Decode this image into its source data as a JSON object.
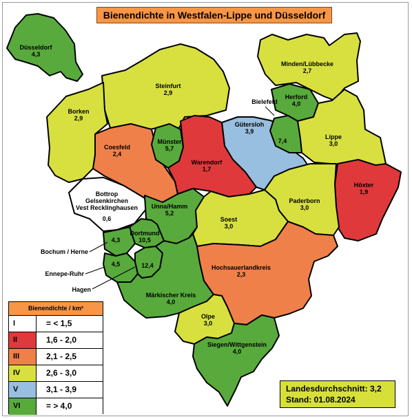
{
  "title": "Bienendichte in Westfalen-Lippe und Düsseldorf",
  "colors": {
    "I": "#ffffff",
    "II": "#e0393b",
    "III": "#f0804a",
    "IV": "#d8e040",
    "V": "#99bfe0",
    "VI": "#58aa3c"
  },
  "regions": [
    {
      "id": "duesseldorf",
      "name": "Düsseldorf",
      "value": "4,3",
      "class": "VI"
    },
    {
      "id": "minden",
      "name": "Minden/Lübbecke",
      "value": "2,7",
      "class": "IV"
    },
    {
      "id": "steinfurt",
      "name": "Steinfurt",
      "value": "2,9",
      "class": "IV"
    },
    {
      "id": "borken",
      "name": "Borken",
      "value": "2,9",
      "class": "IV"
    },
    {
      "id": "herford",
      "name": "Herford",
      "value": "4,0",
      "class": "VI"
    },
    {
      "id": "bielefeld",
      "name": "",
      "value": "7,4",
      "class": "VI"
    },
    {
      "id": "guetersloh",
      "name": "Gütersloh",
      "value": "3,9",
      "class": "V"
    },
    {
      "id": "lippe",
      "name": "Lippe",
      "value": "3,0",
      "class": "IV"
    },
    {
      "id": "coesfeld",
      "name": "Coesfeld",
      "value": "2,4",
      "class": "III"
    },
    {
      "id": "muenster",
      "name": "Münster",
      "value": "5,7",
      "class": "VI"
    },
    {
      "id": "warendorf",
      "name": "Warendorf",
      "value": "1,7",
      "class": "II"
    },
    {
      "id": "hoexter",
      "name": "Höxter",
      "value": "1,9",
      "class": "II"
    },
    {
      "id": "paderborn",
      "name": "Paderborn",
      "value": "3,0",
      "class": "IV"
    },
    {
      "id": "bottrop",
      "name": "Bottrop Gelsenkirchen Vest Recklinghausen",
      "value": "0,6",
      "class": "I"
    },
    {
      "id": "unna",
      "name": "Unna/Hamm",
      "value": "5,2",
      "class": "VI"
    },
    {
      "id": "soest",
      "name": "Soest",
      "value": "3,0",
      "class": "IV"
    },
    {
      "id": "dortmund",
      "name": "Dortmund",
      "value": "10,5",
      "class": "VI"
    },
    {
      "id": "bochum",
      "name": "",
      "value": "4,3",
      "class": "VI"
    },
    {
      "id": "ennepe",
      "name": "",
      "value": "4,5",
      "class": "VI"
    },
    {
      "id": "hagen",
      "name": "",
      "value": "12,4",
      "class": "VI"
    },
    {
      "id": "hsk",
      "name": "Hochsauerlandkreis",
      "value": "2,3",
      "class": "III"
    },
    {
      "id": "mk",
      "name": "Märkischer Kreis",
      "value": "4,0",
      "class": "VI"
    },
    {
      "id": "olpe",
      "name": "Olpe",
      "value": "3,0",
      "class": "IV"
    },
    {
      "id": "siegen",
      "name": "Siegen/Wittgenstein",
      "value": "4,0",
      "class": "VI"
    }
  ],
  "external_labels": {
    "bielefeld": "Bielefeld",
    "bochum": "Bochum / Herne",
    "ennepe": "Ennepe-Ruhr",
    "hagen": "Hagen"
  },
  "legend": {
    "title": "Bienendichte / km²",
    "rows": [
      {
        "class": "I",
        "range": "= < 1,5"
      },
      {
        "class": "II",
        "range": "1,6 - 2,0"
      },
      {
        "class": "III",
        "range": "2,1 - 2,5"
      },
      {
        "class": "IV",
        "range": "2,6 - 3,0"
      },
      {
        "class": "V",
        "range": "3,1 - 3,9"
      },
      {
        "class": "VI",
        "range": "= > 4,0"
      }
    ]
  },
  "footer": {
    "average": "Landesdurchschnitt: 3,2",
    "date": "Stand: 01.08.2024"
  }
}
